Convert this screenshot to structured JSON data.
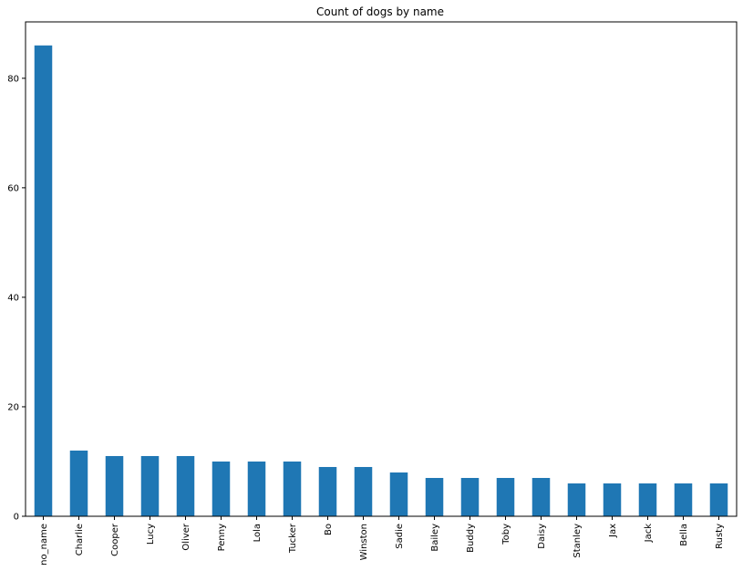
{
  "chart_data": {
    "type": "bar",
    "title": "Count of dogs by name",
    "xlabel": "",
    "ylabel": "",
    "categories": [
      "no_name",
      "Charlie",
      "Cooper",
      "Lucy",
      "Oliver",
      "Penny",
      "Lola",
      "Tucker",
      "Bo",
      "Winston",
      "Sadie",
      "Bailey",
      "Buddy",
      "Toby",
      "Daisy",
      "Stanley",
      "Jax",
      "Jack",
      "Bella",
      "Rusty"
    ],
    "values": [
      86,
      12,
      11,
      11,
      11,
      10,
      10,
      10,
      9,
      9,
      8,
      7,
      7,
      7,
      7,
      6,
      6,
      6,
      6,
      6
    ],
    "yticks": [
      0,
      20,
      40,
      60,
      80
    ],
    "ylim": [
      0,
      90.3
    ],
    "grid": false,
    "legend": "none",
    "bar_color": "#1f77b4"
  }
}
